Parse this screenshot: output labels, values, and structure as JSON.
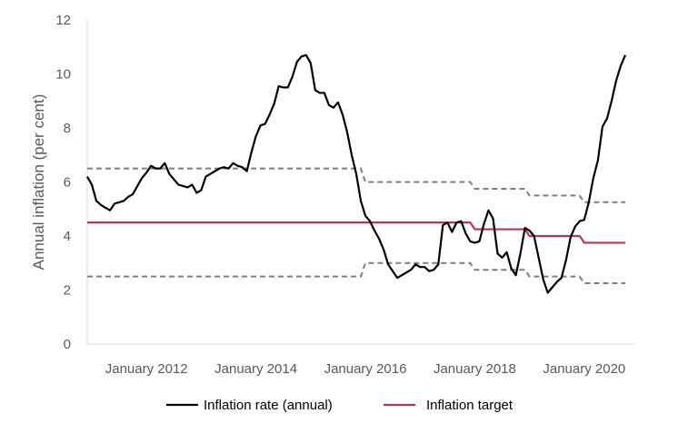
{
  "chart_data": {
    "type": "line",
    "title": "",
    "xlabel": "",
    "ylabel": "Annual inflation (per cent)",
    "ylim": [
      0,
      12
    ],
    "yticks": [
      "0",
      "2",
      "4",
      "6",
      "8",
      "10",
      "12"
    ],
    "xlim": [
      "2010-12",
      "2020-12"
    ],
    "xticks": [
      {
        "date": "2012-01",
        "label": "January 2012"
      },
      {
        "date": "2014-01",
        "label": "January 2014"
      },
      {
        "date": "2016-01",
        "label": "January 2016"
      },
      {
        "date": "2018-01",
        "label": "January 2018"
      },
      {
        "date": "2020-01",
        "label": "January 2020"
      }
    ],
    "grid": false,
    "legend_position": "bottom",
    "colors": {
      "inflation": "#000000",
      "target": "#b5355a",
      "band": "#7f7f7f",
      "axis": "#d9d9d9",
      "text": "#595959"
    },
    "series": [
      {
        "name": "Inflation rate (annual)",
        "key": "inflation",
        "points": [
          [
            "2010-12",
            6.2
          ],
          [
            "2011-01",
            5.9
          ],
          [
            "2011-02",
            5.3
          ],
          [
            "2011-03",
            5.15
          ],
          [
            "2011-04",
            5.05
          ],
          [
            "2011-05",
            4.95
          ],
          [
            "2011-06",
            5.2
          ],
          [
            "2011-07",
            5.25
          ],
          [
            "2011-08",
            5.3
          ],
          [
            "2011-09",
            5.45
          ],
          [
            "2011-10",
            5.55
          ],
          [
            "2011-11",
            5.85
          ],
          [
            "2011-12",
            6.15
          ],
          [
            "2012-01",
            6.35
          ],
          [
            "2012-02",
            6.6
          ],
          [
            "2012-03",
            6.5
          ],
          [
            "2012-04",
            6.5
          ],
          [
            "2012-05",
            6.7
          ],
          [
            "2012-06",
            6.3
          ],
          [
            "2012-07",
            6.1
          ],
          [
            "2012-08",
            5.9
          ],
          [
            "2012-09",
            5.85
          ],
          [
            "2012-10",
            5.8
          ],
          [
            "2012-11",
            5.9
          ],
          [
            "2012-12",
            5.6
          ],
          [
            "2013-01",
            5.7
          ],
          [
            "2013-02",
            6.2
          ],
          [
            "2013-03",
            6.3
          ],
          [
            "2013-04",
            6.4
          ],
          [
            "2013-05",
            6.5
          ],
          [
            "2013-06",
            6.55
          ],
          [
            "2013-07",
            6.5
          ],
          [
            "2013-08",
            6.7
          ],
          [
            "2013-09",
            6.6
          ],
          [
            "2013-10",
            6.55
          ],
          [
            "2013-11",
            6.4
          ],
          [
            "2013-12",
            7.1
          ],
          [
            "2014-01",
            7.7
          ],
          [
            "2014-02",
            8.1
          ],
          [
            "2014-03",
            8.15
          ],
          [
            "2014-04",
            8.5
          ],
          [
            "2014-05",
            8.9
          ],
          [
            "2014-06",
            9.55
          ],
          [
            "2014-07",
            9.5
          ],
          [
            "2014-08",
            9.5
          ],
          [
            "2014-09",
            9.9
          ],
          [
            "2014-10",
            10.45
          ],
          [
            "2014-11",
            10.65
          ],
          [
            "2014-12",
            10.7
          ],
          [
            "2015-01",
            10.4
          ],
          [
            "2015-02",
            9.4
          ],
          [
            "2015-03",
            9.3
          ],
          [
            "2015-04",
            9.3
          ],
          [
            "2015-05",
            8.85
          ],
          [
            "2015-06",
            8.75
          ],
          [
            "2015-07",
            8.95
          ],
          [
            "2015-08",
            8.5
          ],
          [
            "2015-09",
            7.85
          ],
          [
            "2015-10",
            7.0
          ],
          [
            "2015-11",
            6.3
          ],
          [
            "2015-12",
            5.3
          ],
          [
            "2016-01",
            4.75
          ],
          [
            "2016-02",
            4.55
          ],
          [
            "2016-03",
            4.2
          ],
          [
            "2016-04",
            3.9
          ],
          [
            "2016-05",
            3.5
          ],
          [
            "2016-06",
            2.95
          ],
          [
            "2016-07",
            2.7
          ],
          [
            "2016-08",
            2.45
          ],
          [
            "2016-09",
            2.55
          ],
          [
            "2016-10",
            2.65
          ],
          [
            "2016-11",
            2.75
          ],
          [
            "2016-12",
            2.95
          ],
          [
            "2017-01",
            2.85
          ],
          [
            "2017-02",
            2.85
          ],
          [
            "2017-03",
            2.7
          ],
          [
            "2017-04",
            2.75
          ],
          [
            "2017-05",
            2.95
          ],
          [
            "2017-06",
            4.4
          ],
          [
            "2017-07",
            4.5
          ],
          [
            "2017-08",
            4.15
          ],
          [
            "2017-09",
            4.5
          ],
          [
            "2017-10",
            4.55
          ],
          [
            "2017-11",
            4.1
          ],
          [
            "2017-12",
            3.8
          ],
          [
            "2018-01",
            3.75
          ],
          [
            "2018-02",
            3.8
          ],
          [
            "2018-03",
            4.45
          ],
          [
            "2018-04",
            4.95
          ],
          [
            "2018-05",
            4.65
          ],
          [
            "2018-06",
            3.35
          ],
          [
            "2018-07",
            3.2
          ],
          [
            "2018-08",
            3.4
          ],
          [
            "2018-09",
            2.8
          ],
          [
            "2018-10",
            2.55
          ],
          [
            "2018-11",
            3.35
          ],
          [
            "2018-12",
            4.3
          ],
          [
            "2019-01",
            4.2
          ],
          [
            "2019-02",
            4.0
          ],
          [
            "2019-03",
            3.2
          ],
          [
            "2019-04",
            2.4
          ],
          [
            "2019-05",
            1.9
          ],
          [
            "2019-06",
            2.1
          ],
          [
            "2019-07",
            2.3
          ],
          [
            "2019-08",
            2.45
          ],
          [
            "2019-09",
            3.1
          ],
          [
            "2019-10",
            3.95
          ],
          [
            "2019-11",
            4.35
          ],
          [
            "2019-12",
            4.55
          ],
          [
            "2020-01",
            4.6
          ],
          [
            "2020-02",
            5.25
          ],
          [
            "2020-03",
            6.15
          ],
          [
            "2020-04",
            6.8
          ],
          [
            "2020-05",
            8.05
          ],
          [
            "2020-06",
            8.35
          ],
          [
            "2020-07",
            9.0
          ],
          [
            "2020-08",
            9.75
          ],
          [
            "2020-09",
            10.3
          ],
          [
            "2020-10",
            10.7
          ]
        ]
      },
      {
        "name": "Inflation target",
        "key": "target",
        "points": [
          [
            "2010-12",
            4.5
          ],
          [
            "2017-12",
            4.5
          ],
          [
            "2018-01",
            4.25
          ],
          [
            "2018-12",
            4.25
          ],
          [
            "2019-01",
            4.0
          ],
          [
            "2019-12",
            4.0
          ],
          [
            "2020-01",
            3.75
          ],
          [
            "2020-10",
            3.75
          ]
        ]
      },
      {
        "key": "band",
        "points": [
          [
            "2010-12",
            6.5
          ],
          [
            "2015-12",
            6.5
          ],
          [
            "2016-01",
            6.0
          ],
          [
            "2017-12",
            6.0
          ],
          [
            "2018-01",
            5.75
          ],
          [
            "2018-12",
            5.75
          ],
          [
            "2019-01",
            5.5
          ],
          [
            "2019-12",
            5.5
          ],
          [
            "2020-01",
            5.25
          ],
          [
            "2020-10",
            5.25
          ]
        ]
      },
      {
        "key": "band",
        "points": [
          [
            "2010-12",
            2.5
          ],
          [
            "2015-12",
            2.5
          ],
          [
            "2016-01",
            3.0
          ],
          [
            "2017-12",
            3.0
          ],
          [
            "2018-01",
            2.75
          ],
          [
            "2018-12",
            2.75
          ],
          [
            "2019-01",
            2.5
          ],
          [
            "2019-12",
            2.5
          ],
          [
            "2020-01",
            2.25
          ],
          [
            "2020-10",
            2.25
          ]
        ]
      }
    ]
  }
}
